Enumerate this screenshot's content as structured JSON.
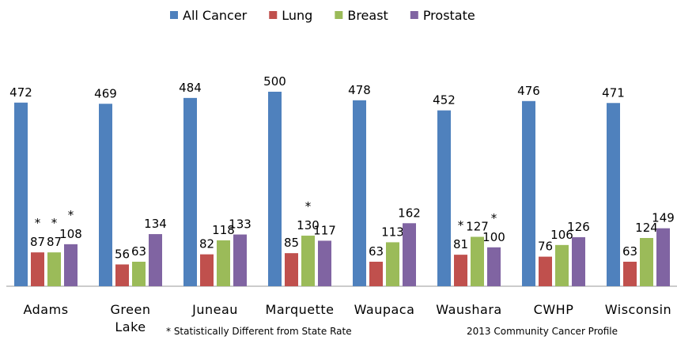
{
  "chart_data": {
    "type": "bar",
    "categories": [
      "Adams",
      "Green Lake",
      "Juneau",
      "Marquette",
      "Waupaca",
      "Waushara",
      "CWHP",
      "Wisconsin"
    ],
    "series": [
      {
        "name": "All Cancer",
        "color": "#4f81bd",
        "values": [
          472,
          469,
          484,
          500,
          478,
          452,
          476,
          471
        ]
      },
      {
        "name": "Lung",
        "color": "#c0504d",
        "values": [
          87,
          56,
          82,
          85,
          63,
          81,
          76,
          63
        ],
        "flags": [
          "*",
          null,
          null,
          null,
          null,
          "*",
          null,
          null
        ]
      },
      {
        "name": "Breast",
        "color": "#9bbb59",
        "values": [
          87,
          63,
          118,
          130,
          113,
          127,
          106,
          124
        ],
        "flags": [
          "*",
          null,
          null,
          "*",
          null,
          null,
          null,
          null
        ]
      },
      {
        "name": "Prostate",
        "color": "#8064a2",
        "values": [
          108,
          134,
          133,
          117,
          162,
          100,
          126,
          149
        ],
        "flags": [
          "*",
          null,
          null,
          null,
          null,
          "*",
          null,
          null
        ]
      }
    ],
    "legend": "top",
    "footnote": "* Statistically Different from State Rate",
    "source": "2013 Community Cancer Profile"
  }
}
